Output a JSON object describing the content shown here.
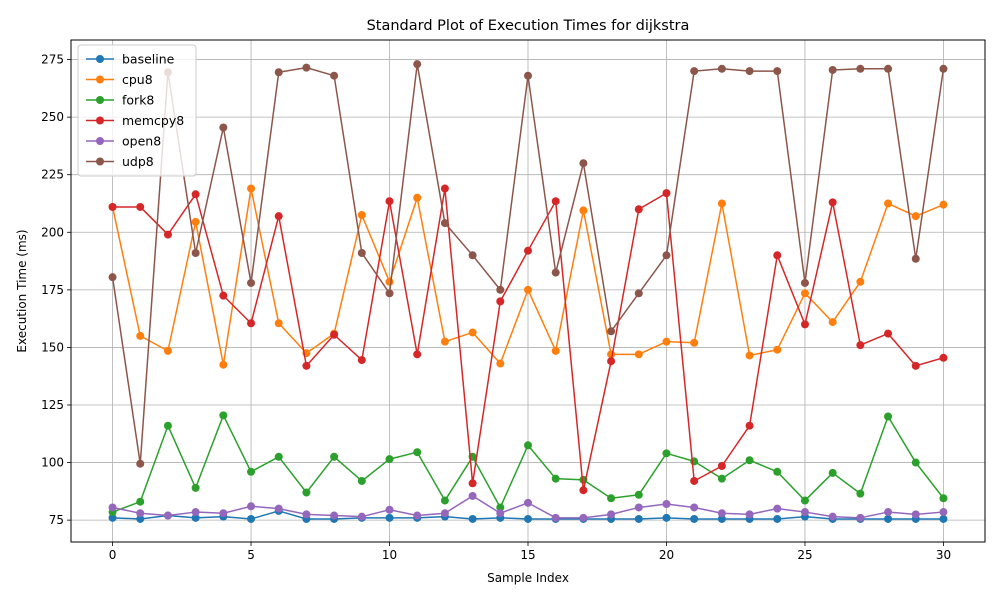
{
  "chart_data": {
    "type": "line",
    "title": "Standard Plot of Execution Times for dijkstra",
    "xlabel": "Sample Index",
    "ylabel": "Execution Time (ms)",
    "xlim": [
      -1.5,
      31.5
    ],
    "ylim": [
      65.5,
      283.5
    ],
    "xticks": [
      0,
      5,
      10,
      15,
      20,
      25,
      30
    ],
    "yticks": [
      75,
      100,
      125,
      150,
      175,
      200,
      225,
      250,
      275
    ],
    "grid": true,
    "legend_position": "top-left",
    "x": [
      0,
      1,
      2,
      3,
      4,
      5,
      6,
      7,
      8,
      9,
      10,
      11,
      12,
      13,
      14,
      15,
      16,
      17,
      18,
      19,
      20,
      21,
      22,
      23,
      24,
      25,
      26,
      27,
      28,
      29,
      30
    ],
    "series": [
      {
        "name": "baseline",
        "color": "#1f77b4",
        "values": [
          76,
          75.5,
          77,
          76,
          76.5,
          75.5,
          79,
          75.5,
          75.5,
          76,
          76,
          76,
          76.5,
          75.5,
          76,
          75.5,
          75.5,
          75.5,
          75.5,
          75.5,
          76,
          75.5,
          75.5,
          75.5,
          75.5,
          76.5,
          75.5,
          75.5,
          75.5,
          75.5,
          75.5
        ]
      },
      {
        "name": "cpu8",
        "color": "#ff7f0e",
        "values": [
          211,
          155,
          148.5,
          204.5,
          142.5,
          219,
          160.5,
          147.5,
          156,
          207.5,
          178.5,
          215,
          152.5,
          156.5,
          143,
          175,
          148.5,
          209.5,
          147,
          147,
          152.5,
          152,
          212.5,
          146.5,
          149,
          173.5,
          161,
          178.5,
          212.5,
          207,
          212
        ]
      },
      {
        "name": "fork8",
        "color": "#2ca02c",
        "values": [
          78.5,
          83,
          116,
          89,
          120.5,
          96,
          102.5,
          87,
          102.5,
          92,
          101.5,
          104.5,
          83.5,
          102.5,
          80.5,
          107.5,
          93,
          92.5,
          84.5,
          86,
          104,
          100.5,
          93,
          101,
          96,
          83.5,
          95.5,
          86.5,
          120,
          100,
          84.5
        ]
      },
      {
        "name": "memcpy8",
        "color": "#d62728",
        "values": [
          211,
          211,
          199,
          216.5,
          172.5,
          160.5,
          207,
          142,
          155.5,
          144.5,
          213.5,
          147,
          219,
          91,
          170,
          192,
          213.5,
          88,
          144,
          210,
          217,
          92,
          98.5,
          116,
          190,
          160,
          213,
          151,
          156,
          142,
          145.5
        ]
      },
      {
        "name": "open8",
        "color": "#9467bd",
        "values": [
          80.5,
          78,
          77,
          78.5,
          78,
          81,
          80,
          77.5,
          77,
          76.5,
          79.5,
          77,
          78,
          85.5,
          78,
          82.5,
          76,
          76,
          77.5,
          80.5,
          82,
          80.5,
          78,
          77.5,
          80,
          78.5,
          76.5,
          76,
          78.5,
          77.5,
          78.5
        ]
      },
      {
        "name": "udp8",
        "color": "#8c564b",
        "values": [
          180.5,
          99.5,
          269.5,
          191,
          245.5,
          178,
          269.5,
          271.5,
          268,
          191,
          173.5,
          273,
          204,
          190,
          175,
          268,
          182.5,
          230,
          157,
          173.5,
          190,
          270,
          271,
          270,
          270,
          178,
          270.5,
          271,
          271,
          188.5,
          271
        ]
      }
    ]
  }
}
